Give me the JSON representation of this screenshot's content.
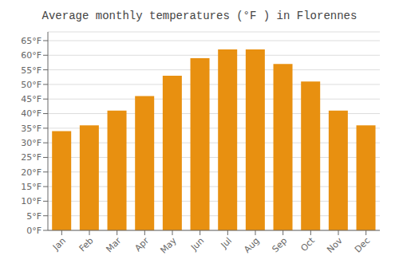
{
  "chart_data": {
    "type": "bar",
    "title": "Average monthly temperatures (°F ) in Florennes",
    "categories": [
      "Jan",
      "Feb",
      "Mar",
      "Apr",
      "May",
      "Jun",
      "Jul",
      "Aug",
      "Sep",
      "Oct",
      "Nov",
      "Dec"
    ],
    "values": [
      34,
      36,
      41,
      46,
      53,
      59,
      62,
      62,
      57,
      51,
      41,
      36
    ],
    "color": "#E89010",
    "ylim": [
      0,
      68
    ],
    "yticks": [
      {
        "value": 0,
        "label": "0°F"
      },
      {
        "value": 5,
        "label": "5°F"
      },
      {
        "value": 10,
        "label": "10°F"
      },
      {
        "value": 15,
        "label": "15°F"
      },
      {
        "value": 20,
        "label": "20°F"
      },
      {
        "value": 25,
        "label": "25°F"
      },
      {
        "value": 30,
        "label": "30°F"
      },
      {
        "value": 35,
        "label": "35°F"
      },
      {
        "value": 40,
        "label": "40°F"
      },
      {
        "value": 45,
        "label": "45°F"
      },
      {
        "value": 50,
        "label": "50°F"
      },
      {
        "value": 55,
        "label": "55°F"
      },
      {
        "value": 60,
        "label": "60°F"
      },
      {
        "value": 65,
        "label": "65°F"
      }
    ],
    "grid": true
  }
}
